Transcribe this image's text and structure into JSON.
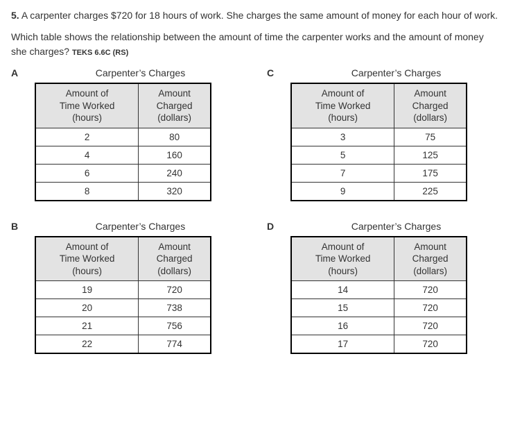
{
  "question_number": "5.",
  "question_text_1": "A carpenter charges $720 for 18 hours of work. She charges the same amount of money for each hour of work.",
  "question_text_2": "Which table shows the relationship between the amount of time the carpenter works and the amount of money she charges?",
  "teks": "TEKS 6.6C (RS)",
  "table_title": "Carpenter’s Charges",
  "col1_header_l1": "Amount of",
  "col1_header_l2": "Time Worked",
  "col1_header_l3": "(hours)",
  "col2_header_l1": "Amount",
  "col2_header_l2": "Charged",
  "col2_header_l3": "(dollars)",
  "choices": {
    "A": {
      "letter": "A",
      "rows": [
        {
          "h": "2",
          "d": "80"
        },
        {
          "h": "4",
          "d": "160"
        },
        {
          "h": "6",
          "d": "240"
        },
        {
          "h": "8",
          "d": "320"
        }
      ]
    },
    "C": {
      "letter": "C",
      "rows": [
        {
          "h": "3",
          "d": "75"
        },
        {
          "h": "5",
          "d": "125"
        },
        {
          "h": "7",
          "d": "175"
        },
        {
          "h": "9",
          "d": "225"
        }
      ]
    },
    "B": {
      "letter": "B",
      "rows": [
        {
          "h": "19",
          "d": "720"
        },
        {
          "h": "20",
          "d": "738"
        },
        {
          "h": "21",
          "d": "756"
        },
        {
          "h": "22",
          "d": "774"
        }
      ]
    },
    "D": {
      "letter": "D",
      "rows": [
        {
          "h": "14",
          "d": "720"
        },
        {
          "h": "15",
          "d": "720"
        },
        {
          "h": "16",
          "d": "720"
        },
        {
          "h": "17",
          "d": "720"
        }
      ]
    }
  }
}
